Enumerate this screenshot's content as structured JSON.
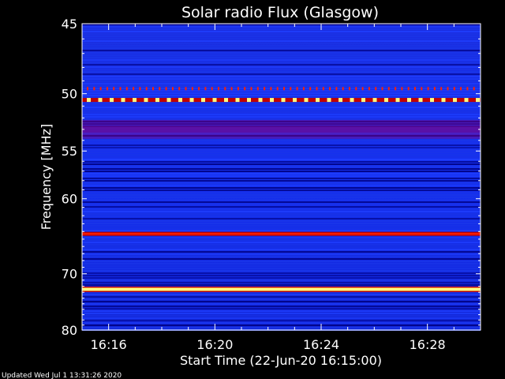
{
  "chart_data": {
    "type": "heatmap",
    "title": "Solar radio Flux (Glasgow)",
    "xlabel": "Start Time (22-Jun-20 16:15:00)",
    "ylabel": "Frequency [MHz]",
    "x_tick_labels": [
      "16:16",
      "16:20",
      "16:24",
      "16:28"
    ],
    "x_ticks_minutes_from_start": [
      1,
      5,
      9,
      13
    ],
    "x_range_minutes_from_start": [
      0,
      15
    ],
    "y_tick_labels": [
      "45",
      "50",
      "55",
      "60",
      "70",
      "80"
    ],
    "y_ticks_mhz": [
      45,
      50,
      55,
      60,
      70,
      80
    ],
    "y_range_mhz": [
      45,
      80
    ],
    "y_scale": "reciprocal",
    "colormap": [
      "#000080",
      "#1030ff",
      "#800080",
      "#c00000",
      "#ff2000",
      "#ffff80"
    ],
    "bands": [
      {
        "freq_mhz": 49.6,
        "intensity": 0.55,
        "pattern": "pulsed"
      },
      {
        "freq_mhz": 50.5,
        "intensity": 0.9,
        "pattern": "pulsed"
      },
      {
        "freq_mhz": 53.0,
        "intensity": 0.4,
        "pattern": "broad"
      },
      {
        "freq_mhz": 64.3,
        "intensity": 0.75,
        "pattern": "steady"
      },
      {
        "freq_mhz": 72.5,
        "intensity": 1.0,
        "pattern": "steady"
      }
    ],
    "footer": "Updated Wed Jul  1 13:31:26 2020"
  }
}
